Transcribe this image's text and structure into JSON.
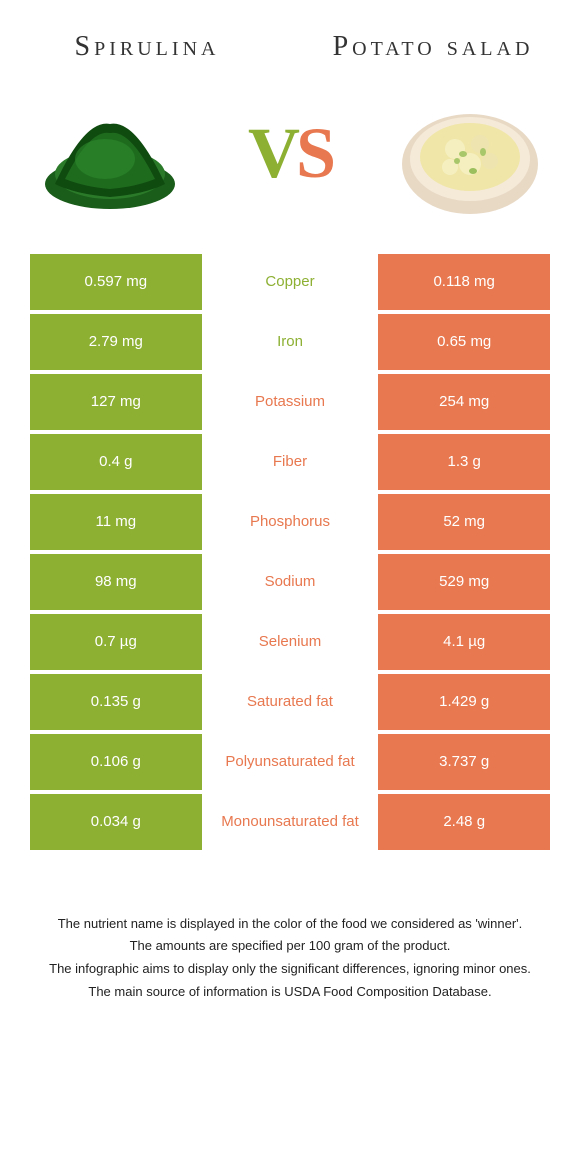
{
  "colors": {
    "green": "#8db033",
    "orange": "#e8784f",
    "text": "#333333",
    "background": "#ffffff"
  },
  "foods": {
    "left": {
      "name": "Spirulina",
      "color": "#8db033"
    },
    "right": {
      "name": "Potato salad",
      "color": "#e8784f"
    }
  },
  "vs_label": {
    "v": "V",
    "s": "S"
  },
  "rows": [
    {
      "nutrient": "Copper",
      "left": "0.597 mg",
      "right": "0.118 mg",
      "winner": "left"
    },
    {
      "nutrient": "Iron",
      "left": "2.79 mg",
      "right": "0.65 mg",
      "winner": "left"
    },
    {
      "nutrient": "Potassium",
      "left": "127 mg",
      "right": "254 mg",
      "winner": "right"
    },
    {
      "nutrient": "Fiber",
      "left": "0.4 g",
      "right": "1.3 g",
      "winner": "right"
    },
    {
      "nutrient": "Phosphorus",
      "left": "11 mg",
      "right": "52 mg",
      "winner": "right"
    },
    {
      "nutrient": "Sodium",
      "left": "98 mg",
      "right": "529 mg",
      "winner": "right"
    },
    {
      "nutrient": "Selenium",
      "left": "0.7 µg",
      "right": "4.1 µg",
      "winner": "right"
    },
    {
      "nutrient": "Saturated fat",
      "left": "0.135 g",
      "right": "1.429 g",
      "winner": "right"
    },
    {
      "nutrient": "Polyunsaturated fat",
      "left": "0.106 g",
      "right": "3.737 g",
      "winner": "right"
    },
    {
      "nutrient": "Monounsaturated fat",
      "left": "0.034 g",
      "right": "2.48 g",
      "winner": "right"
    }
  ],
  "footer": {
    "line1": "The nutrient name is displayed in the color of the food we considered as 'winner'.",
    "line2": "The amounts are specified per 100 gram of the product.",
    "line3": "The infographic aims to display only the significant differences, ignoring minor ones.",
    "line4": "The main source of information is USDA Food Composition Database."
  }
}
